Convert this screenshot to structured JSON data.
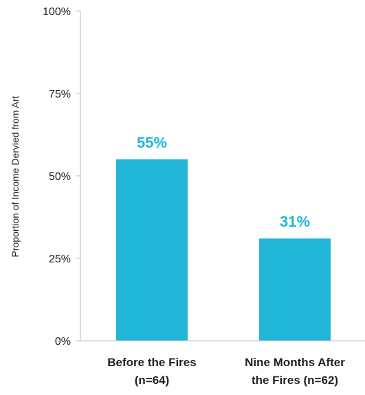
{
  "chart_data": {
    "type": "bar",
    "categories": [
      "Before the Fires (n=64)",
      "Nine Months After the Fires (n=62)"
    ],
    "category_lines": [
      [
        "Before the Fires",
        "(n=64)"
      ],
      [
        "Nine Months After",
        "the Fires (n=62)"
      ]
    ],
    "values": [
      55,
      31
    ],
    "data_labels": [
      "55%",
      "31%"
    ],
    "ylabel": "Proportion of Income Dervied from Art",
    "ylim": [
      0,
      100
    ],
    "yticks": [
      0,
      25,
      50,
      75,
      100
    ],
    "ytick_labels": [
      "0%",
      "25%",
      "50%",
      "75%",
      "100%"
    ],
    "grid": false,
    "legend": "none",
    "bar_color": "#21b6d7",
    "label_color": "#21b6d7",
    "axis_color": "#bfbfbf"
  }
}
